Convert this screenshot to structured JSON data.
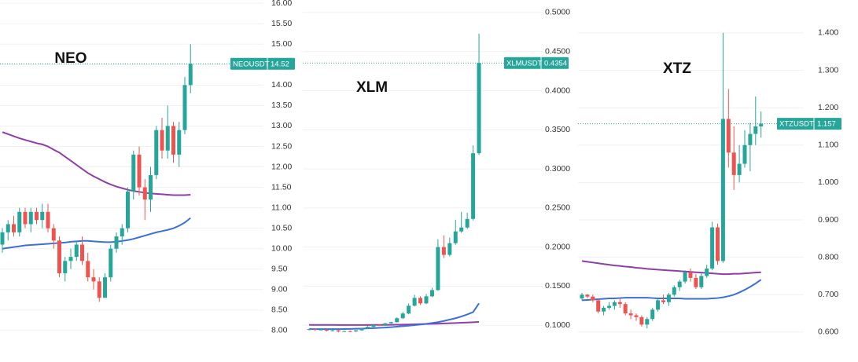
{
  "chart_data": [
    {
      "type": "candlestick",
      "title": "NEO",
      "symbol": "NEOUSDT",
      "up_color": "#26a69a",
      "down_color": "#ef5350",
      "ylim": [
        7.23,
        16.08
      ],
      "yticks": [
        {
          "value": 8,
          "label": "8.00"
        },
        {
          "value": 8.5,
          "label": "8.50"
        },
        {
          "value": 9,
          "label": "9.00"
        },
        {
          "value": 9.5,
          "label": "9.50"
        },
        {
          "value": 10,
          "label": "10.00"
        },
        {
          "value": 10.5,
          "label": "10.50"
        },
        {
          "value": 11,
          "label": "11.00"
        },
        {
          "value": 11.5,
          "label": "11.50"
        },
        {
          "value": 12,
          "label": "12.00"
        },
        {
          "value": 12.5,
          "label": "12.50"
        },
        {
          "value": 13,
          "label": "13.00"
        },
        {
          "value": 13.5,
          "label": "13.50"
        },
        {
          "value": 14,
          "label": "14.00"
        },
        {
          "value": 14.5,
          "label": "14.50"
        },
        {
          "value": 15,
          "label": "15.00"
        },
        {
          "value": 15.5,
          "label": "15.50"
        },
        {
          "value": 16,
          "label": "16.00"
        }
      ],
      "open": [
        10.1,
        10.4,
        10.6,
        10.4,
        10.9,
        10.6,
        10.9,
        10.7,
        10.9,
        10.5,
        10.2,
        9.4,
        9.7,
        9.8,
        10.1,
        9.7,
        9.3,
        9.2,
        8.8,
        9.3,
        10.0,
        10.3,
        10.5,
        11.4,
        12.3,
        11.5,
        11.2,
        11.8,
        12.9,
        12.4,
        13.0,
        12.3,
        12.9,
        14.0
      ],
      "high": [
        10.5,
        10.7,
        10.8,
        11.0,
        11.0,
        11.0,
        11.0,
        11.1,
        11.1,
        10.6,
        10.3,
        9.8,
        10.0,
        10.2,
        10.3,
        9.9,
        9.5,
        9.3,
        9.4,
        10.1,
        10.4,
        10.6,
        11.5,
        12.4,
        12.5,
        11.7,
        12.0,
        13.0,
        13.2,
        13.5,
        13.1,
        13.1,
        14.2,
        15.0
      ],
      "low": [
        9.9,
        10.2,
        10.3,
        10.3,
        10.5,
        10.4,
        10.6,
        10.5,
        10.4,
        10.0,
        9.3,
        9.2,
        9.5,
        9.7,
        9.6,
        9.2,
        9.0,
        8.7,
        8.8,
        9.2,
        9.9,
        10.1,
        10.4,
        11.2,
        11.3,
        10.7,
        10.9,
        11.7,
        12.2,
        12.2,
        12.1,
        12.0,
        12.8,
        13.8
      ],
      "close": [
        10.4,
        10.6,
        10.4,
        10.9,
        10.6,
        10.9,
        10.7,
        10.9,
        10.5,
        10.2,
        9.4,
        9.7,
        9.8,
        10.1,
        9.7,
        9.3,
        9.2,
        8.8,
        9.3,
        10.0,
        10.3,
        10.5,
        11.4,
        12.3,
        11.5,
        11.2,
        11.8,
        12.9,
        12.4,
        13.0,
        12.3,
        12.9,
        14.0,
        14.52
      ],
      "lines": [
        {
          "color": "#8e3ea8",
          "values": [
            12.85,
            12.8,
            12.75,
            12.7,
            12.66,
            12.62,
            12.58,
            12.55,
            12.5,
            12.42,
            12.35,
            12.25,
            12.15,
            12.05,
            11.95,
            11.85,
            11.77,
            11.7,
            11.63,
            11.57,
            11.52,
            11.48,
            11.44,
            11.41,
            11.39,
            11.37,
            11.35,
            11.34,
            11.33,
            11.32,
            11.31,
            11.31,
            11.31,
            11.32
          ]
        },
        {
          "color": "#3d6fd6",
          "values": [
            10.0,
            10.02,
            10.04,
            10.06,
            10.08,
            10.09,
            10.1,
            10.11,
            10.12,
            10.13,
            10.14,
            10.15,
            10.17,
            10.18,
            10.19,
            10.19,
            10.18,
            10.17,
            10.16,
            10.16,
            10.17,
            10.19,
            10.21,
            10.24,
            10.28,
            10.32,
            10.36,
            10.4,
            10.43,
            10.46,
            10.5,
            10.56,
            10.64,
            10.75
          ]
        }
      ]
    },
    {
      "type": "candlestick",
      "title": "XLM",
      "symbol": "XLMUSDT",
      "up_color": "#26a69a",
      "down_color": "#ef5350",
      "ylim": [
        0.053,
        0.516
      ],
      "yticks": [
        {
          "value": 0.1,
          "label": "0.1000"
        },
        {
          "value": 0.15,
          "label": "0.1500"
        },
        {
          "value": 0.2,
          "label": "0.2000"
        },
        {
          "value": 0.25,
          "label": "0.2500"
        },
        {
          "value": 0.3,
          "label": "0.3000"
        },
        {
          "value": 0.35,
          "label": "0.3500"
        },
        {
          "value": 0.4,
          "label": "0.4000"
        },
        {
          "value": 0.45,
          "label": "0.4500"
        },
        {
          "value": 0.5,
          "label": "0.5000"
        }
      ],
      "open": [
        0.094,
        0.095,
        0.094,
        0.0945,
        0.093,
        0.0935,
        0.092,
        0.0925,
        0.092,
        0.0935,
        0.096,
        0.098,
        0.1005,
        0.1,
        0.1025,
        0.104,
        0.109,
        0.115,
        0.125,
        0.135,
        0.128,
        0.137,
        0.145,
        0.2,
        0.19,
        0.205,
        0.22,
        0.225,
        0.236,
        0.32
      ],
      "high": [
        0.0955,
        0.096,
        0.0955,
        0.095,
        0.0945,
        0.094,
        0.093,
        0.0935,
        0.094,
        0.0965,
        0.099,
        0.1015,
        0.1015,
        0.103,
        0.1045,
        0.11,
        0.117,
        0.128,
        0.139,
        0.137,
        0.14,
        0.148,
        0.21,
        0.215,
        0.212,
        0.235,
        0.245,
        0.244,
        0.33,
        0.473
      ],
      "low": [
        0.0935,
        0.093,
        0.0935,
        0.092,
        0.092,
        0.091,
        0.0915,
        0.091,
        0.0915,
        0.093,
        0.0955,
        0.0975,
        0.099,
        0.0995,
        0.102,
        0.1035,
        0.108,
        0.114,
        0.124,
        0.126,
        0.127,
        0.136,
        0.144,
        0.186,
        0.188,
        0.203,
        0.218,
        0.223,
        0.234,
        0.318
      ],
      "close": [
        0.095,
        0.094,
        0.0945,
        0.093,
        0.0935,
        0.092,
        0.0925,
        0.092,
        0.0935,
        0.096,
        0.098,
        0.1005,
        0.1,
        0.1025,
        0.104,
        0.109,
        0.115,
        0.125,
        0.135,
        0.128,
        0.137,
        0.145,
        0.2,
        0.19,
        0.205,
        0.22,
        0.225,
        0.236,
        0.32,
        0.4354
      ],
      "lines": [
        {
          "color": "#8e3ea8",
          "values": [
            0.1005,
            0.1005,
            0.1005,
            0.1004,
            0.1004,
            0.1003,
            0.1003,
            0.1003,
            0.1003,
            0.1003,
            0.1003,
            0.1004,
            0.1004,
            0.1005,
            0.1006,
            0.1007,
            0.1008,
            0.101,
            0.1012,
            0.1014,
            0.1016,
            0.1018,
            0.102,
            0.1023,
            0.1026,
            0.1029,
            0.1032,
            0.1035,
            0.1038,
            0.1042
          ]
        },
        {
          "color": "#3d6fd6",
          "values": [
            0.095,
            0.095,
            0.095,
            0.095,
            0.095,
            0.0951,
            0.0952,
            0.0953,
            0.0955,
            0.0957,
            0.096,
            0.0963,
            0.0967,
            0.0971,
            0.0976,
            0.0982,
            0.0988,
            0.0995,
            0.1002,
            0.101,
            0.1018,
            0.1028,
            0.104,
            0.1055,
            0.1072,
            0.109,
            0.1112,
            0.1138,
            0.1168,
            0.128
          ]
        }
      ]
    },
    {
      "type": "candlestick",
      "title": "XTZ",
      "symbol": "XTZUSDT",
      "up_color": "#26a69a",
      "down_color": "#ef5350",
      "ylim": [
        0.52,
        1.488
      ],
      "yticks": [
        {
          "value": 0.6,
          "label": "0.600"
        },
        {
          "value": 0.7,
          "label": "0.700"
        },
        {
          "value": 0.8,
          "label": "0.800"
        },
        {
          "value": 0.9,
          "label": "0.900"
        },
        {
          "value": 1,
          "label": "1.000"
        },
        {
          "value": 1.1,
          "label": "1.100"
        },
        {
          "value": 1.2,
          "label": "1.200"
        },
        {
          "value": 1.3,
          "label": "1.300"
        },
        {
          "value": 1.4,
          "label": "1.400"
        }
      ],
      "open": [
        0.69,
        0.7,
        0.695,
        0.685,
        0.655,
        0.665,
        0.67,
        0.68,
        0.675,
        0.65,
        0.645,
        0.64,
        0.62,
        0.635,
        0.66,
        0.685,
        0.68,
        0.7,
        0.72,
        0.735,
        0.76,
        0.745,
        0.72,
        0.75,
        0.77,
        0.88,
        0.79,
        1.17,
        1.08,
        1.02,
        1.05,
        1.1,
        1.13,
        1.15
      ],
      "high": [
        0.705,
        0.702,
        0.7,
        0.69,
        0.67,
        0.68,
        0.685,
        0.69,
        0.68,
        0.66,
        0.65,
        0.645,
        0.64,
        0.665,
        0.69,
        0.7,
        0.705,
        0.725,
        0.74,
        0.765,
        0.77,
        0.755,
        0.76,
        0.78,
        0.895,
        0.89,
        1.4,
        1.25,
        1.15,
        1.1,
        1.14,
        1.16,
        1.23,
        1.19
      ],
      "low": [
        0.685,
        0.69,
        0.68,
        0.65,
        0.645,
        0.66,
        0.66,
        0.665,
        0.645,
        0.635,
        0.63,
        0.615,
        0.61,
        0.63,
        0.655,
        0.675,
        0.67,
        0.695,
        0.71,
        0.73,
        0.735,
        0.715,
        0.715,
        0.745,
        0.765,
        0.78,
        0.785,
        1.04,
        0.98,
        1.0,
        1.04,
        1.03,
        1.1,
        1.12
      ],
      "close": [
        0.7,
        0.695,
        0.685,
        0.655,
        0.665,
        0.67,
        0.68,
        0.675,
        0.65,
        0.645,
        0.64,
        0.62,
        0.635,
        0.66,
        0.685,
        0.68,
        0.7,
        0.72,
        0.735,
        0.76,
        0.745,
        0.72,
        0.75,
        0.77,
        0.88,
        0.79,
        1.17,
        1.08,
        1.02,
        1.05,
        1.1,
        1.13,
        1.15,
        1.157
      ],
      "lines": [
        {
          "color": "#8e3ea8",
          "values": [
            0.79,
            0.788,
            0.786,
            0.784,
            0.782,
            0.78,
            0.778,
            0.777,
            0.775,
            0.774,
            0.772,
            0.771,
            0.769,
            0.768,
            0.767,
            0.766,
            0.765,
            0.764,
            0.763,
            0.762,
            0.761,
            0.76,
            0.759,
            0.758,
            0.757,
            0.756,
            0.755,
            0.755,
            0.756,
            0.756,
            0.757,
            0.758,
            0.759,
            0.76
          ]
        },
        {
          "color": "#3d6fd6",
          "values": [
            0.685,
            0.686,
            0.687,
            0.688,
            0.689,
            0.69,
            0.69,
            0.691,
            0.692,
            0.692,
            0.692,
            0.692,
            0.692,
            0.691,
            0.69,
            0.69,
            0.69,
            0.69,
            0.69,
            0.689,
            0.689,
            0.689,
            0.689,
            0.689,
            0.69,
            0.691,
            0.693,
            0.696,
            0.7,
            0.706,
            0.713,
            0.721,
            0.73,
            0.74
          ]
        }
      ]
    }
  ]
}
